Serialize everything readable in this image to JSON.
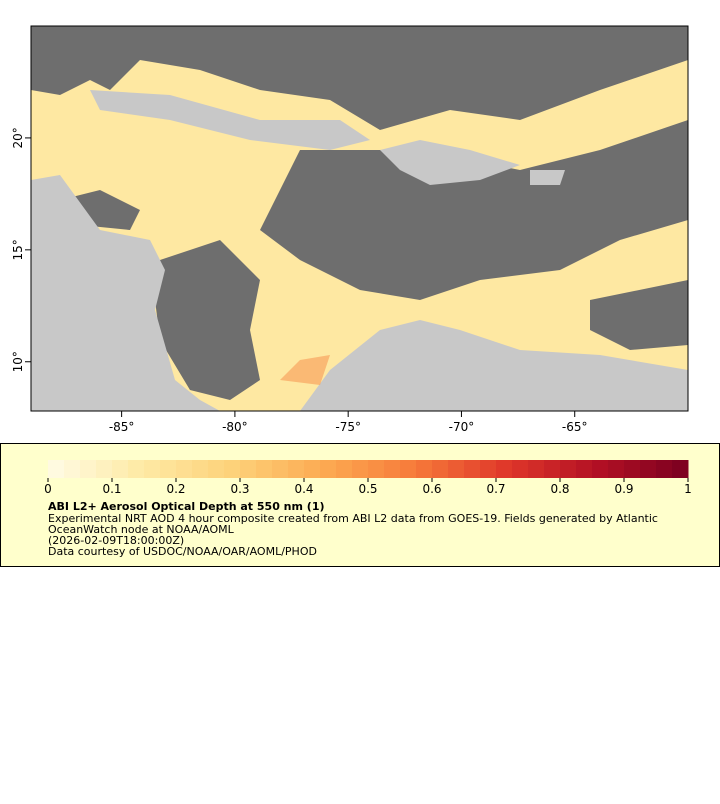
{
  "map": {
    "xlim": [
      -89,
      -60
    ],
    "ylim": [
      7.8,
      25
    ],
    "xticks": [
      {
        "value": -85,
        "label": "-85°"
      },
      {
        "value": -80,
        "label": "-80°"
      },
      {
        "value": -75,
        "label": "-75°"
      },
      {
        "value": -70,
        "label": "-70°"
      },
      {
        "value": -65,
        "label": "-65°"
      }
    ],
    "yticks": [
      {
        "value": 10,
        "label": "10°"
      },
      {
        "value": 15,
        "label": "15°"
      },
      {
        "value": 20,
        "label": "20°"
      }
    ]
  },
  "legend": {
    "colorbar": {
      "range": [
        0,
        1
      ],
      "ticks": [
        0,
        0.1,
        0.2,
        0.3,
        0.4,
        0.5,
        0.6,
        0.7,
        0.8,
        0.9,
        1
      ],
      "colors": [
        "#fffbe6",
        "#feeaa6",
        "#fdd27a",
        "#fcab52",
        "#f77b3a",
        "#e0382a",
        "#b31024",
        "#7a0020"
      ]
    },
    "title": "ABI L2+ Aerosol Optical Depth at 550 nm (1)",
    "lines": [
      "Experimental NRT AOD 4 hour composite created from ABI L2 data from GOES-19. Fields generated by Atlantic",
      "OceanWatch node at NOAA/AOML",
      "(2026-02-09T18:00:00Z)",
      "Data courtesy of USDOC/NOAA/OAR/AOML/PHOD"
    ]
  }
}
